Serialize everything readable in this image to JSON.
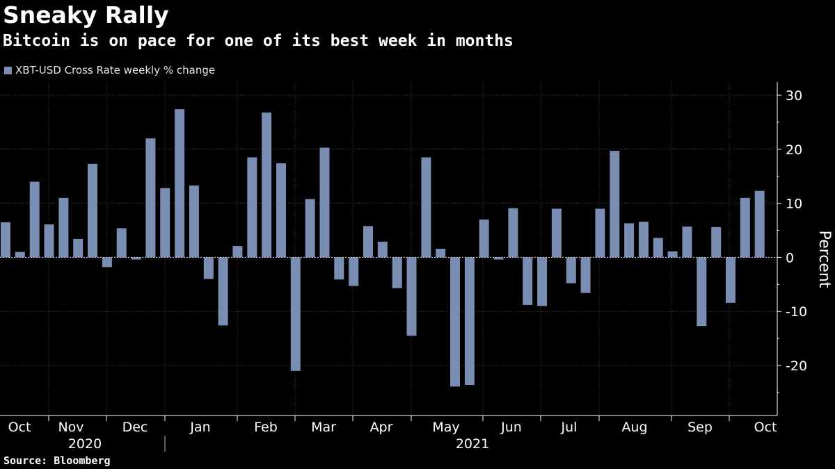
{
  "header": {
    "title": "Sneaky Rally",
    "subtitle": "Bitcoin is on pace for one of its best week in months"
  },
  "legend": {
    "label": "XBT-USD Cross Rate weekly % change"
  },
  "footer": {
    "source": "Source: Bloomberg"
  },
  "colors": {
    "bar": "#7a8db3",
    "grid": "#4a4a4a",
    "axis": "#ffffff",
    "background": "#000000"
  },
  "chart_data": {
    "type": "bar",
    "title": "Sneaky Rally",
    "subtitle": "Bitcoin is on pace for one of its best week in months",
    "ylabel": "Percent",
    "xlabel": "",
    "ylim": [
      -29,
      33
    ],
    "yticks": [
      30,
      20,
      10,
      0,
      -10,
      -20
    ],
    "ytick_labels": [
      "30",
      "20",
      "10",
      "0",
      "-10",
      "-20"
    ],
    "grid": true,
    "legend_position": "top-left",
    "month_labels": [
      "Oct",
      "Nov",
      "Dec",
      "Jan",
      "Feb",
      "Mar",
      "Apr",
      "May",
      "Jun",
      "Jul",
      "Aug",
      "Sep",
      "Oct"
    ],
    "year_labels": [
      "2020",
      "2021"
    ],
    "series": [
      {
        "name": "XBT-USD Cross Rate weekly % change",
        "values": [
          6.5,
          1.0,
          14.0,
          6.1,
          11.0,
          3.4,
          17.3,
          -1.8,
          5.4,
          -0.4,
          22.0,
          12.8,
          27.4,
          13.3,
          -4.0,
          -12.6,
          2.1,
          18.5,
          26.8,
          17.4,
          -21.0,
          10.8,
          20.3,
          -4.1,
          -5.3,
          5.8,
          2.9,
          -5.7,
          -14.5,
          18.5,
          1.6,
          -23.9,
          -23.6,
          7.0,
          -0.4,
          9.1,
          -8.8,
          -9.0,
          9.0,
          -4.8,
          -6.6,
          9.0,
          19.7,
          6.3,
          6.6,
          3.6,
          1.1,
          5.7,
          -12.7,
          5.6,
          -8.4,
          11.0,
          12.3
        ]
      }
    ]
  }
}
